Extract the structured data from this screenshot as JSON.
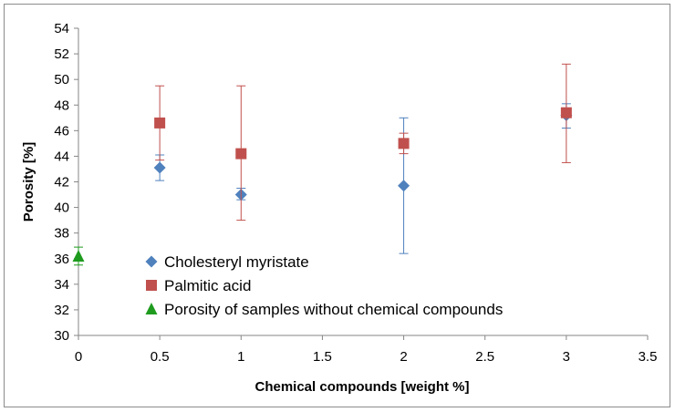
{
  "chart_data": {
    "type": "scatter",
    "title": "",
    "xlabel": "Chemical compounds [weight %]",
    "ylabel": "Porosity  [%]",
    "xlim": [
      0,
      3.5
    ],
    "ylim": [
      30,
      54
    ],
    "xticks": [
      0,
      0.5,
      1,
      1.5,
      2,
      2.5,
      3,
      3.5
    ],
    "yticks": [
      30,
      32,
      34,
      36,
      38,
      40,
      42,
      44,
      46,
      48,
      50,
      52,
      54
    ],
    "xtick_labels": [
      "0",
      "0.5",
      "1",
      "1.5",
      "2",
      "2.5",
      "3",
      "3.5"
    ],
    "ytick_labels": [
      "30",
      "32",
      "34",
      "36",
      "38",
      "40",
      "42",
      "44",
      "46",
      "48",
      "50",
      "52",
      "54"
    ],
    "grid": false,
    "legend_position": "lower-left",
    "series": [
      {
        "name": "Cholesteryl myristate",
        "marker": "diamond",
        "color": "#4f81bd",
        "points": [
          {
            "x": 0.5,
            "y": 43.1,
            "err_low": 42.1,
            "err_high": 44.1
          },
          {
            "x": 1,
            "y": 41.0,
            "err_low": 40.6,
            "err_high": 41.5
          },
          {
            "x": 2,
            "y": 41.7,
            "err_low": 36.4,
            "err_high": 47.0
          },
          {
            "x": 3,
            "y": 47.2,
            "err_low": 46.2,
            "err_high": 48.1
          }
        ]
      },
      {
        "name": "Palmitic acid",
        "marker": "square",
        "color": "#c0504d",
        "points": [
          {
            "x": 0.5,
            "y": 46.6,
            "err_low": 43.7,
            "err_high": 49.5
          },
          {
            "x": 1,
            "y": 44.2,
            "err_low": 39.0,
            "err_high": 49.5
          },
          {
            "x": 2,
            "y": 45.0,
            "err_low": 44.2,
            "err_high": 45.8
          },
          {
            "x": 3,
            "y": 47.4,
            "err_low": 43.5,
            "err_high": 51.2
          }
        ]
      },
      {
        "name": "Porosity of samples without chemical compounds",
        "marker": "triangle",
        "color": "#1e9b1e",
        "points": [
          {
            "x": 0,
            "y": 36.2,
            "err_low": 35.5,
            "err_high": 36.9
          }
        ]
      }
    ]
  }
}
